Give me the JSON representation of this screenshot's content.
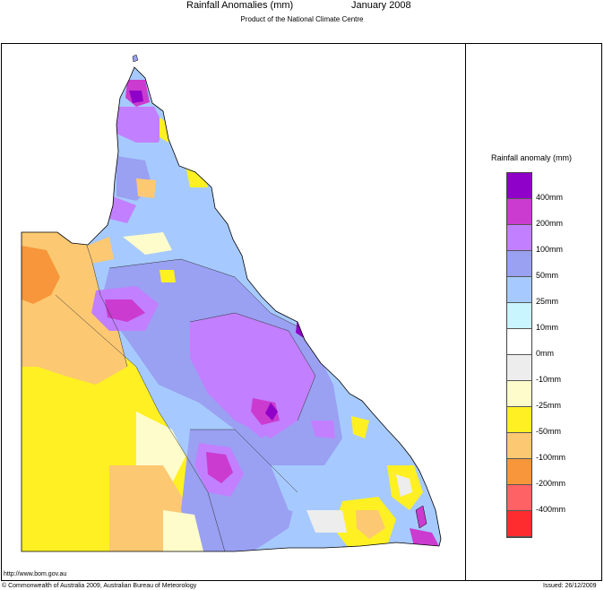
{
  "header": {
    "title": "Rainfall Anomalies (mm)",
    "period": "January 2008",
    "subtitle": "Product of the National Climate Centre"
  },
  "legend": {
    "title": "Rainfall anomaly (mm)",
    "items": [
      {
        "label": "400mm",
        "color": "#8f00c8"
      },
      {
        "label": "200mm",
        "color": "#cb3bd0"
      },
      {
        "label": "100mm",
        "color": "#c27fff"
      },
      {
        "label": "50mm",
        "color": "#9aa0f2"
      },
      {
        "label": "25mm",
        "color": "#a6caff"
      },
      {
        "label": "10mm",
        "color": "#c8f5ff"
      },
      {
        "label": "0mm",
        "color": "#ffffff"
      },
      {
        "label": "-10mm",
        "color": "#ededed"
      },
      {
        "label": "-25mm",
        "color": "#fffccb"
      },
      {
        "label": "-50mm",
        "color": "#fff023"
      },
      {
        "label": "-100mm",
        "color": "#fcc872"
      },
      {
        "label": "-200mm",
        "color": "#f7963a"
      },
      {
        "label": "-400mm",
        "color": "#fe6264"
      },
      {
        "label": "",
        "color": "#fe2c2e"
      }
    ]
  },
  "footer": {
    "url": "http://www.bom.gov.au",
    "copyright": "© Commonwealth of Australia 2009, Australian Bureau of Meteorology",
    "issued": "Issued: 26/12/2009"
  }
}
